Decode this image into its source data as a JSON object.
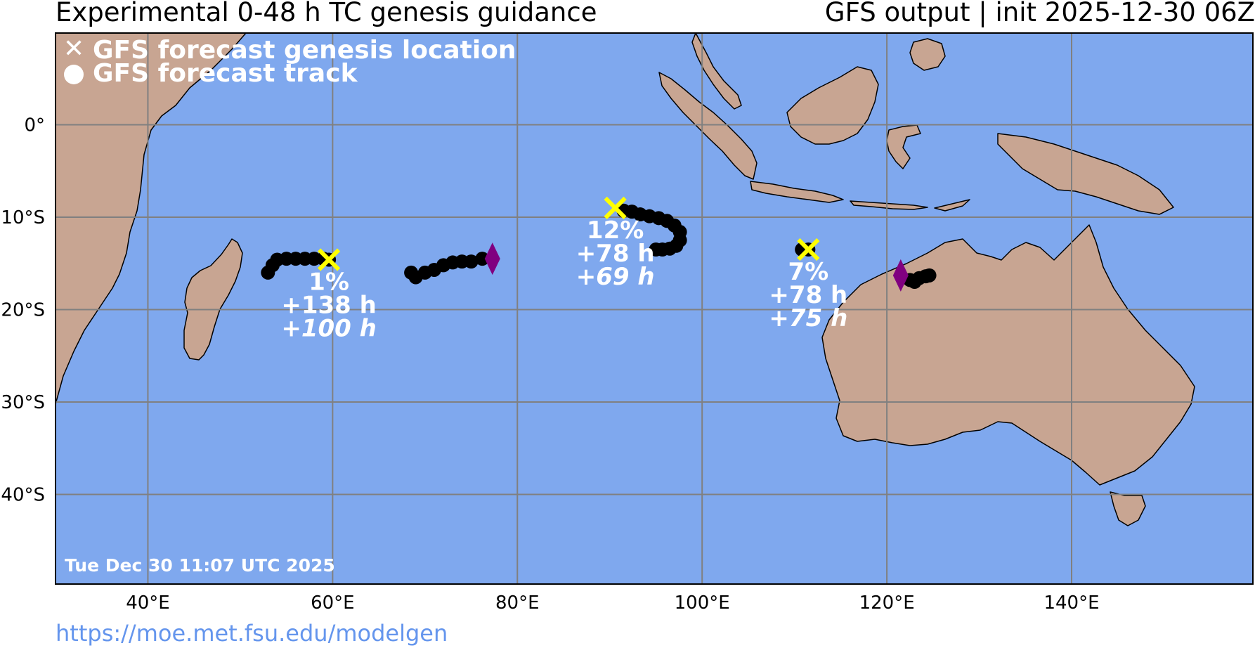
{
  "title": {
    "left": "Experimental 0-48 h TC genesis guidance",
    "right": "GFS output | init 2025-12-30 06Z"
  },
  "legend": {
    "genesis_label": "GFS forecast genesis location",
    "track_label": "GFS forecast track"
  },
  "timestamp": "Tue Dec 30 11:07 UTC 2025",
  "source_url": "https://moe.met.fsu.edu/modelgen",
  "axes": {
    "lon_ticks": [
      "40°E",
      "60°E",
      "80°E",
      "100°E",
      "120°E",
      "140°E"
    ],
    "lat_ticks": [
      "0°",
      "10°S",
      "20°S",
      "30°S",
      "40°S"
    ]
  },
  "colors": {
    "ocean": "#7fa8ee",
    "land": "#c8a592",
    "genesis_marker": "#ffff00",
    "track": "#000000",
    "start_marker": "#800080",
    "label_text": "#ffffff"
  },
  "systems": [
    {
      "probability": "1%",
      "lead_time": "+138 h",
      "duration_prefix": "+",
      "duration": "100 h",
      "genesis": {
        "lon": 59.6,
        "lat": -14.6
      },
      "track": [
        [
          53.0,
          -16.0
        ],
        [
          53.5,
          -15.2
        ],
        [
          54.0,
          -14.6
        ],
        [
          55.0,
          -14.5
        ],
        [
          56.0,
          -14.5
        ],
        [
          57.0,
          -14.5
        ],
        [
          58.0,
          -14.5
        ],
        [
          59.0,
          -14.5
        ],
        [
          59.6,
          -14.6
        ]
      ],
      "start_marker": null
    },
    {
      "probability": "",
      "lead_time": "",
      "duration_prefix": "",
      "duration": "",
      "genesis": null,
      "track": [
        [
          68.5,
          -16.0
        ],
        [
          69.0,
          -16.5
        ],
        [
          70.0,
          -16.0
        ],
        [
          71.0,
          -15.7
        ],
        [
          72.0,
          -15.2
        ],
        [
          73.0,
          -14.9
        ],
        [
          74.0,
          -14.8
        ],
        [
          75.0,
          -14.8
        ],
        [
          76.2,
          -14.5
        ]
      ],
      "start_marker": {
        "lon": 77.3,
        "lat": -14.5
      }
    },
    {
      "probability": "12%",
      "lead_time": "+78 h",
      "duration_prefix": "+",
      "duration": "69 h",
      "genesis": {
        "lon": 90.6,
        "lat": -9.0
      },
      "track": [
        [
          91.5,
          -9.3
        ],
        [
          92.4,
          -9.4
        ],
        [
          93.3,
          -9.7
        ],
        [
          94.3,
          -9.9
        ],
        [
          95.3,
          -10.1
        ],
        [
          96.2,
          -10.4
        ],
        [
          97.0,
          -10.9
        ],
        [
          97.6,
          -11.6
        ],
        [
          97.6,
          -12.5
        ],
        [
          97.2,
          -13.1
        ],
        [
          96.5,
          -13.4
        ],
        [
          95.7,
          -13.5
        ],
        [
          95.0,
          -13.5
        ]
      ],
      "start_marker": null
    },
    {
      "probability": "7%",
      "lead_time": "+78 h",
      "duration_prefix": "+",
      "duration": "75 h",
      "genesis": {
        "lon": 111.5,
        "lat": -13.5
      },
      "track": [
        [
          110.8,
          -13.5
        ],
        [
          111.5,
          -13.5
        ]
      ],
      "start_marker": null
    },
    {
      "probability": "",
      "lead_time": "",
      "duration_prefix": "",
      "duration": "",
      "genesis": null,
      "track": [
        [
          122.5,
          -16.8
        ],
        [
          123.0,
          -17.0
        ],
        [
          123.5,
          -16.6
        ],
        [
          124.2,
          -16.4
        ],
        [
          124.6,
          -16.3
        ]
      ],
      "start_marker": {
        "lon": 121.5,
        "lat": -16.3
      }
    }
  ]
}
